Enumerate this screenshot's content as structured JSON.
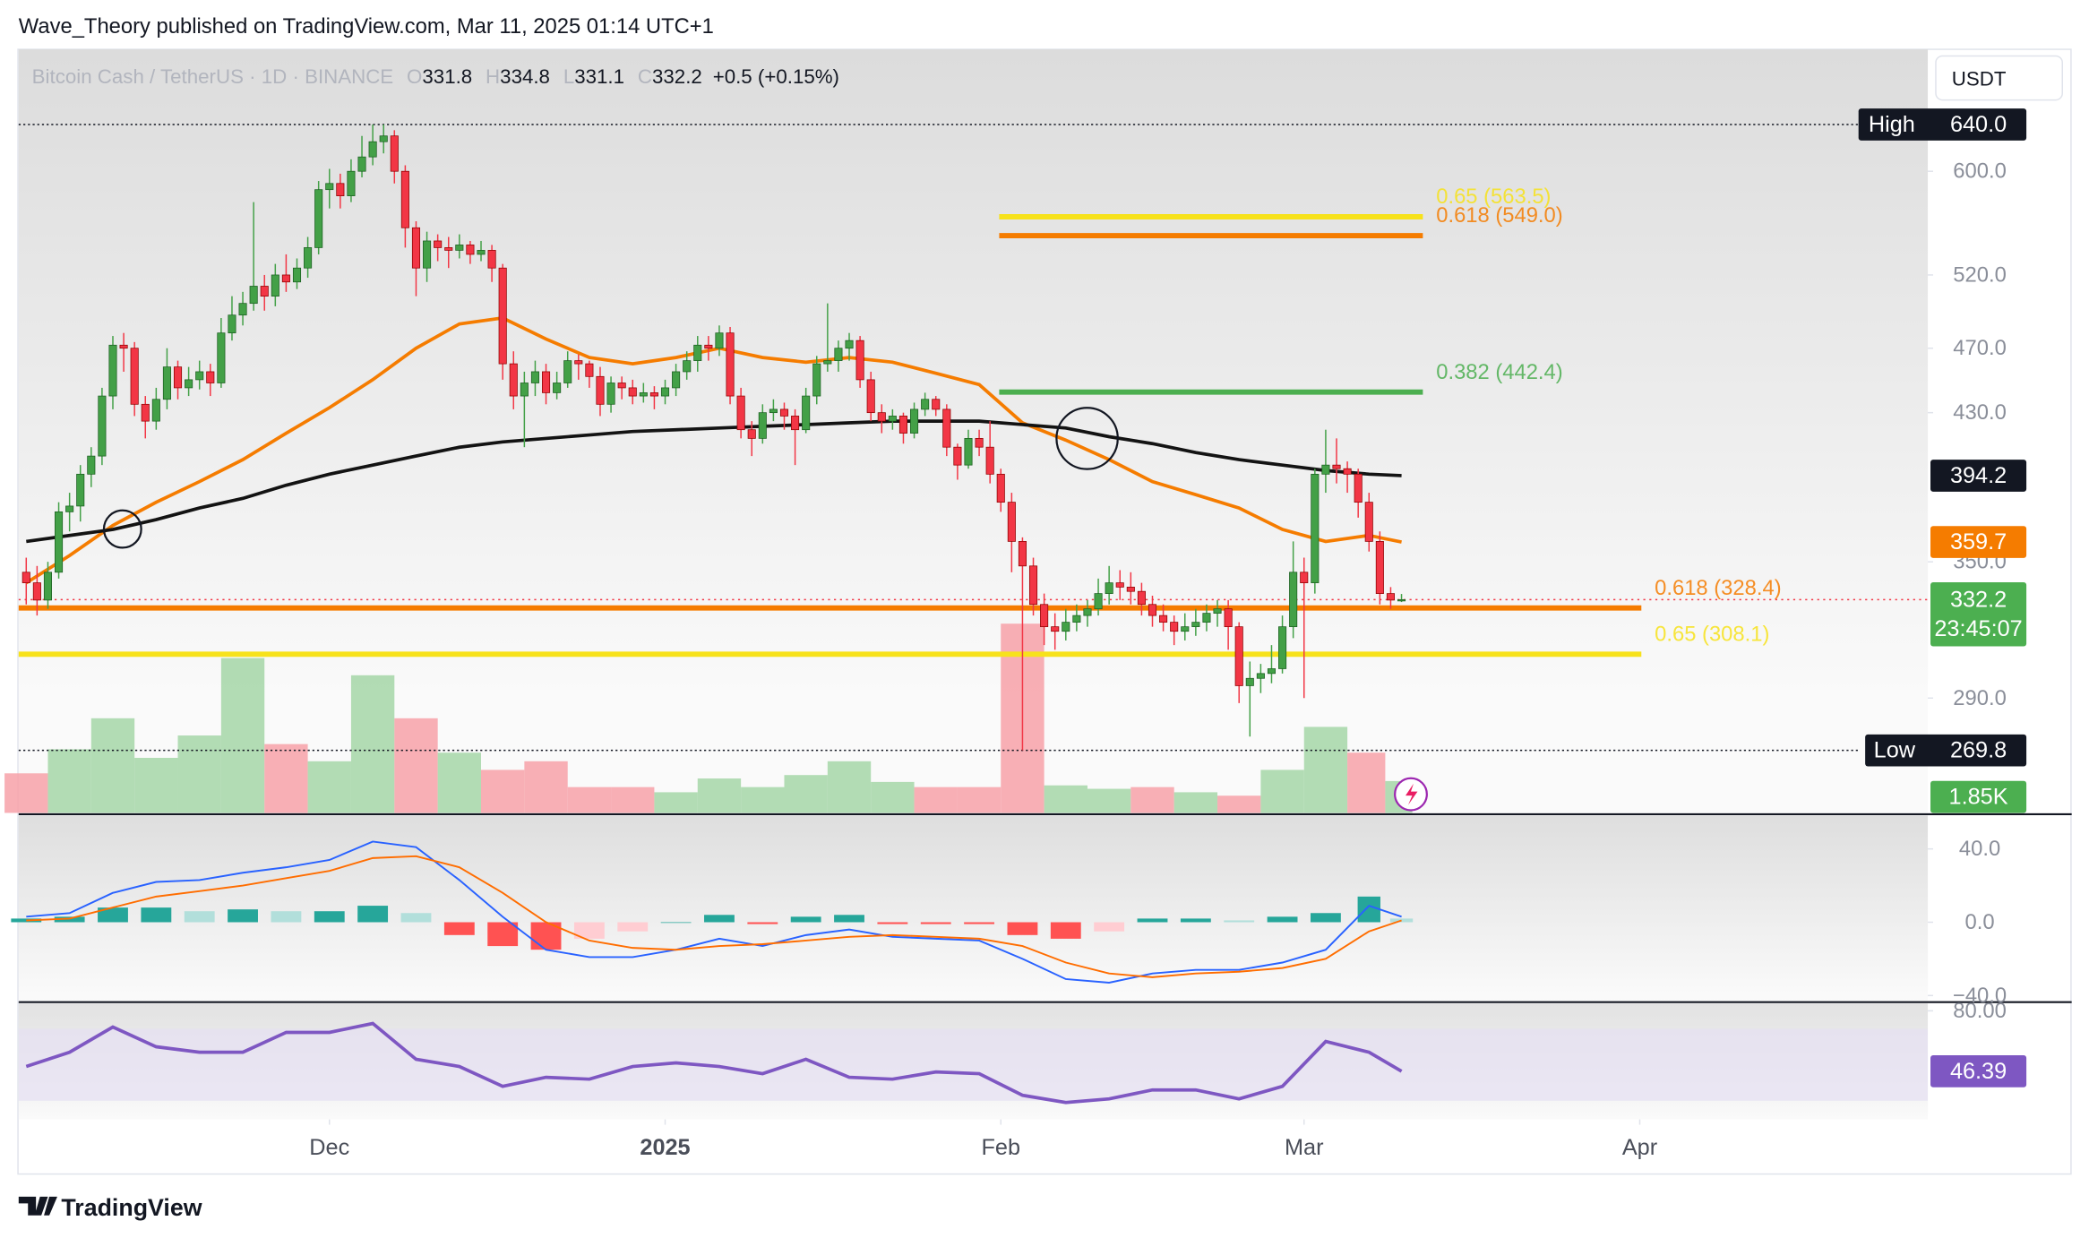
{
  "header": {
    "published": "Wave_Theory published on TradingView.com, Mar 11, 2025 01:14 UTC+1"
  },
  "chart_data": {
    "type": "candlestick",
    "title": "Bitcoin Cash / TetherUS · 1D · BINANCE",
    "ohlc": [
      {
        "label": "O",
        "value": 331.8
      },
      {
        "label": "H",
        "value": 334.8
      },
      {
        "label": "L",
        "value": 331.1
      },
      {
        "label": "C",
        "value": 332.2
      }
    ],
    "change": "+0.5 (+0.15%)",
    "currency": "USDT",
    "up_color": "#43a047",
    "down_color": "#f23645",
    "log_scale": true,
    "xlim": [
      -0.7,
      175.6
    ],
    "xticks": [
      {
        "value": 28,
        "label": "Dec"
      },
      {
        "value": 59,
        "label": "2025"
      },
      {
        "value": 90,
        "label": "Feb"
      },
      {
        "value": 118,
        "label": "Mar"
      },
      {
        "value": 149,
        "label": "Apr"
      }
    ],
    "ylim": [
      247.5,
      710
    ],
    "yticks": [
      {
        "value": 600,
        "label": "600.0"
      },
      {
        "value": 520,
        "label": "520.0"
      },
      {
        "value": 470,
        "label": "470.0"
      },
      {
        "value": 430,
        "label": "430.0"
      },
      {
        "value": 350,
        "label": "350.0"
      },
      {
        "value": 290,
        "label": "290.0"
      }
    ],
    "candles": [
      [
        345,
        352,
        330,
        340
      ],
      [
        340,
        348,
        325,
        332
      ],
      [
        332,
        350,
        328,
        345
      ],
      [
        345,
        380,
        342,
        375
      ],
      [
        375,
        385,
        365,
        378
      ],
      [
        378,
        400,
        370,
        395
      ],
      [
        395,
        410,
        388,
        405
      ],
      [
        405,
        445,
        400,
        440
      ],
      [
        440,
        478,
        432,
        472
      ],
      [
        472,
        480,
        455,
        470
      ],
      [
        470,
        474,
        428,
        435
      ],
      [
        435,
        440,
        415,
        425
      ],
      [
        425,
        445,
        420,
        438
      ],
      [
        438,
        470,
        432,
        458
      ],
      [
        458,
        462,
        438,
        445
      ],
      [
        445,
        458,
        440,
        450
      ],
      [
        450,
        462,
        444,
        455
      ],
      [
        455,
        460,
        440,
        448
      ],
      [
        448,
        490,
        445,
        480
      ],
      [
        480,
        505,
        475,
        492
      ],
      [
        492,
        508,
        485,
        500
      ],
      [
        500,
        575,
        495,
        512
      ],
      [
        512,
        520,
        495,
        505
      ],
      [
        505,
        528,
        498,
        520
      ],
      [
        520,
        535,
        508,
        515
      ],
      [
        515,
        532,
        510,
        525
      ],
      [
        525,
        548,
        518,
        540
      ],
      [
        540,
        592,
        535,
        585
      ],
      [
        585,
        602,
        570,
        590
      ],
      [
        590,
        598,
        570,
        580
      ],
      [
        580,
        610,
        575,
        600
      ],
      [
        600,
        630,
        595,
        612
      ],
      [
        612,
        640,
        605,
        625
      ],
      [
        625,
        640,
        615,
        630
      ],
      [
        630,
        635,
        590,
        600
      ],
      [
        600,
        605,
        540,
        555
      ],
      [
        555,
        560,
        505,
        525
      ],
      [
        525,
        552,
        515,
        545
      ],
      [
        545,
        550,
        530,
        540
      ],
      [
        540,
        548,
        525,
        538
      ],
      [
        538,
        550,
        532,
        542
      ],
      [
        542,
        545,
        528,
        535
      ],
      [
        535,
        545,
        530,
        538
      ],
      [
        538,
        542,
        515,
        525
      ],
      [
        525,
        528,
        450,
        460
      ],
      [
        460,
        468,
        432,
        440
      ],
      [
        440,
        455,
        410,
        448
      ],
      [
        448,
        462,
        440,
        455
      ],
      [
        455,
        460,
        435,
        442
      ],
      [
        442,
        455,
        438,
        448
      ],
      [
        448,
        468,
        445,
        462
      ],
      [
        462,
        466,
        450,
        460
      ],
      [
        460,
        462,
        445,
        452
      ],
      [
        452,
        458,
        428,
        435
      ],
      [
        435,
        452,
        430,
        448
      ],
      [
        448,
        452,
        438,
        445
      ],
      [
        445,
        450,
        435,
        440
      ],
      [
        440,
        448,
        436,
        442
      ],
      [
        442,
        446,
        432,
        440
      ],
      [
        440,
        450,
        435,
        445
      ],
      [
        445,
        460,
        440,
        455
      ],
      [
        455,
        468,
        450,
        462
      ],
      [
        462,
        478,
        455,
        472
      ],
      [
        472,
        478,
        462,
        470
      ],
      [
        470,
        485,
        465,
        480
      ],
      [
        480,
        484,
        435,
        440
      ],
      [
        440,
        445,
        415,
        420
      ],
      [
        420,
        425,
        405,
        415
      ],
      [
        415,
        435,
        412,
        430
      ],
      [
        430,
        438,
        425,
        432
      ],
      [
        432,
        436,
        420,
        428
      ],
      [
        428,
        432,
        400,
        420
      ],
      [
        420,
        445,
        418,
        440
      ],
      [
        440,
        465,
        435,
        460
      ],
      [
        460,
        500,
        455,
        462
      ],
      [
        462,
        475,
        455,
        470
      ],
      [
        470,
        480,
        462,
        475
      ],
      [
        475,
        478,
        445,
        450
      ],
      [
        450,
        455,
        425,
        430
      ],
      [
        430,
        435,
        418,
        425
      ],
      [
        425,
        432,
        420,
        428
      ],
      [
        428,
        430,
        412,
        418
      ],
      [
        418,
        436,
        415,
        432
      ],
      [
        432,
        442,
        428,
        438
      ],
      [
        438,
        440,
        428,
        432
      ],
      [
        432,
        435,
        405,
        410
      ],
      [
        410,
        412,
        392,
        400
      ],
      [
        400,
        420,
        398,
        415
      ],
      [
        415,
        420,
        405,
        410
      ],
      [
        410,
        425,
        390,
        395
      ],
      [
        395,
        398,
        375,
        380
      ],
      [
        380,
        385,
        345,
        360
      ],
      [
        360,
        362,
        269.8,
        348
      ],
      [
        348,
        352,
        325,
        330
      ],
      [
        330,
        335,
        312,
        320
      ],
      [
        320,
        326,
        310,
        318
      ],
      [
        318,
        328,
        314,
        322
      ],
      [
        322,
        330,
        318,
        325
      ],
      [
        325,
        332,
        320,
        328
      ],
      [
        328,
        342,
        325,
        335
      ],
      [
        335,
        348,
        330,
        340
      ],
      [
        340,
        346,
        332,
        338
      ],
      [
        338,
        345,
        330,
        336
      ],
      [
        336,
        340,
        325,
        330
      ],
      [
        330,
        334,
        320,
        325
      ],
      [
        325,
        330,
        318,
        322
      ],
      [
        322,
        325,
        312,
        318
      ],
      [
        318,
        326,
        314,
        320
      ],
      [
        320,
        328,
        316,
        322
      ],
      [
        322,
        330,
        318,
        326
      ],
      [
        326,
        332,
        320,
        328
      ],
      [
        328,
        332,
        310,
        320
      ],
      [
        320,
        322,
        288,
        295
      ],
      [
        295,
        305,
        275,
        298
      ],
      [
        298,
        304,
        292,
        300
      ],
      [
        300,
        312,
        296,
        302
      ],
      [
        302,
        325,
        300,
        320
      ],
      [
        320,
        360,
        315,
        345
      ],
      [
        345,
        352,
        290,
        340
      ],
      [
        340,
        398,
        335,
        395
      ],
      [
        395,
        420,
        385,
        400
      ],
      [
        400,
        415,
        390,
        398
      ],
      [
        398,
        402,
        385,
        395
      ],
      [
        395,
        398,
        372,
        380
      ],
      [
        380,
        385,
        355,
        360
      ],
      [
        360,
        365,
        330,
        335
      ],
      [
        335,
        338,
        328,
        332
      ],
      [
        331.8,
        334.8,
        331.1,
        332.2
      ]
    ],
    "fib_levels": [
      {
        "label": "0.65 (563.5)",
        "value": 563.5,
        "color": "#f7e21b"
      },
      {
        "label": "0.618 (549.0)",
        "value": 549.0,
        "color": "#f57c00"
      },
      {
        "label": "0.382 (442.4)",
        "value": 442.4,
        "color": "#4caf50"
      },
      {
        "label": "0.618 (328.4)",
        "value": 328.4,
        "color": "#f57c00"
      },
      {
        "label": "0.65 (308.1)",
        "value": 308.1,
        "color": "#f7e21b"
      }
    ],
    "high": {
      "name": "High",
      "value": 640,
      "label": "640.0"
    },
    "low": {
      "name": "Low",
      "value": 269.8
    },
    "countdown": "23:45:07",
    "indicator_x": [
      0,
      4,
      8,
      12,
      16,
      20,
      24,
      28,
      32,
      36,
      40,
      44,
      48,
      52,
      56,
      60,
      64,
      68,
      72,
      76,
      80,
      84,
      88,
      92,
      96,
      100,
      104,
      108,
      112,
      116,
      120,
      124,
      127
    ],
    "ema": {
      "color": "#f57c00",
      "values": [
        340,
        353,
        368,
        380,
        391,
        403,
        418,
        433,
        450,
        470,
        486,
        490,
        476,
        464,
        460,
        464,
        470,
        464,
        461,
        464,
        461,
        454,
        447,
        424,
        414,
        403,
        391,
        384,
        377,
        366,
        360,
        363,
        359.7
      ]
    },
    "ma": {
      "color": "#131313",
      "values": [
        360,
        363,
        366,
        371,
        377,
        382,
        389,
        395,
        400,
        405,
        410,
        413,
        415,
        417,
        419,
        420,
        421,
        422,
        423,
        424,
        425,
        425,
        425,
        423,
        421,
        416,
        412,
        407,
        403,
        400,
        397,
        395,
        394.2
      ]
    },
    "volume": {
      "up_color": "#a5d6a7",
      "down_color": "#f7a1a8",
      "values": [
        2300,
        3700,
        5500,
        3200,
        4500,
        9000,
        4000,
        3000,
        8000,
        5500,
        3500,
        2500,
        3000,
        1500,
        1500,
        1200,
        2000,
        1500,
        2200,
        3000,
        1800,
        1500,
        1500,
        11000,
        1600,
        1400,
        1500,
        1200,
        1000,
        2500,
        5000,
        3500,
        1850
      ],
      "value_labels": [
        null,
        null,
        null,
        null,
        null,
        null,
        null,
        null,
        null,
        null,
        null,
        null,
        null,
        null,
        null,
        null,
        null,
        null,
        null,
        null,
        null,
        null,
        null,
        null,
        null,
        null,
        null,
        null,
        null,
        null,
        null,
        null,
        "1.85K"
      ]
    },
    "macd": {
      "macd_color": "#2962ff",
      "signal_color": "#ff6d00",
      "ylim": [
        -43.6,
        58.2
      ],
      "yticks": [
        {
          "value": 40,
          "label": "40.0"
        },
        {
          "value": 0,
          "label": "0.0"
        },
        {
          "value": -40,
          "label": "−40.0"
        }
      ],
      "macd": [
        3,
        5,
        16,
        22,
        23,
        27,
        30,
        34,
        44,
        41,
        23,
        3,
        -15,
        -19,
        -19,
        -15,
        -9,
        -13,
        -7,
        -4,
        -8,
        -9,
        -10,
        -20,
        -31,
        -33,
        -28,
        -26,
        -26,
        -22,
        -15,
        9,
        3
      ],
      "signal": [
        1,
        2,
        8,
        14,
        17,
        20,
        24,
        28,
        35,
        36,
        30,
        16,
        0,
        -10,
        -14,
        -15,
        -13,
        -12,
        -10,
        -8,
        -7,
        -8,
        -9,
        -13,
        -22,
        -28,
        -30,
        -28,
        -27,
        -25,
        -20,
        -5,
        1
      ],
      "histogram": [
        2,
        3,
        8,
        8,
        6,
        7,
        6,
        6,
        9,
        5,
        -7,
        -13,
        -15,
        -9,
        -5,
        0,
        4,
        -1,
        3,
        4,
        -1,
        -1,
        -1,
        -7,
        -9,
        -5,
        2,
        2,
        1,
        3,
        5,
        14,
        2
      ]
    },
    "rsi": {
      "color": "#7e57c2",
      "ylim": [
        19.6,
        84.1
      ],
      "yticks": [
        {
          "value": 80,
          "label": "80.00"
        }
      ],
      "values": [
        49,
        57,
        71,
        60,
        57,
        57,
        68,
        68,
        73,
        53,
        49,
        38,
        43,
        42,
        49,
        51,
        49,
        45,
        53,
        43,
        42,
        46,
        45,
        33,
        29,
        31,
        36,
        36,
        31,
        38,
        63,
        57,
        46.39
      ]
    }
  },
  "footer": {
    "brand": "TradingView"
  }
}
